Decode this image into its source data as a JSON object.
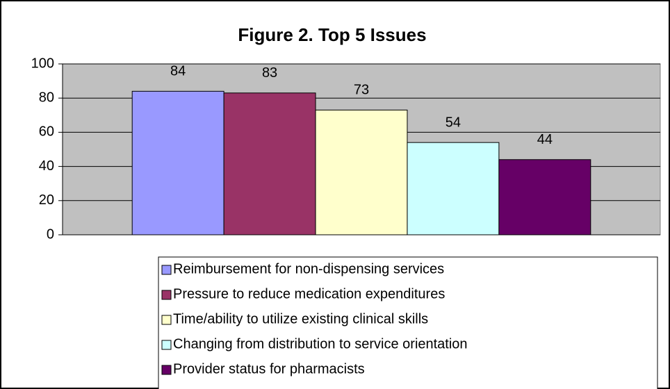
{
  "chart_data": {
    "type": "bar",
    "title": "Figure 2.  Top 5 Issues",
    "categories": [
      null
    ],
    "series": [
      {
        "name": "Reimbursement for non-dispensing services",
        "color": "#9999ff",
        "values": [
          84
        ]
      },
      {
        "name": "Pressure to reduce medication expenditures",
        "color": "#993366",
        "values": [
          83
        ]
      },
      {
        "name": "Time/ability to utilize existing clinical skills",
        "color": "#ffffcc",
        "values": [
          73
        ]
      },
      {
        "name": "Changing from distribution to service orientation",
        "color": "#ccffff",
        "values": [
          54
        ]
      },
      {
        "name": "Provider status for pharmacists",
        "color": "#660066",
        "values": [
          44
        ]
      }
    ],
    "ylim": [
      0,
      100
    ],
    "yticks": [
      0,
      20,
      40,
      60,
      80,
      100
    ],
    "grid": true,
    "plot_background": "#c0c0c0",
    "legend": "bottom"
  }
}
